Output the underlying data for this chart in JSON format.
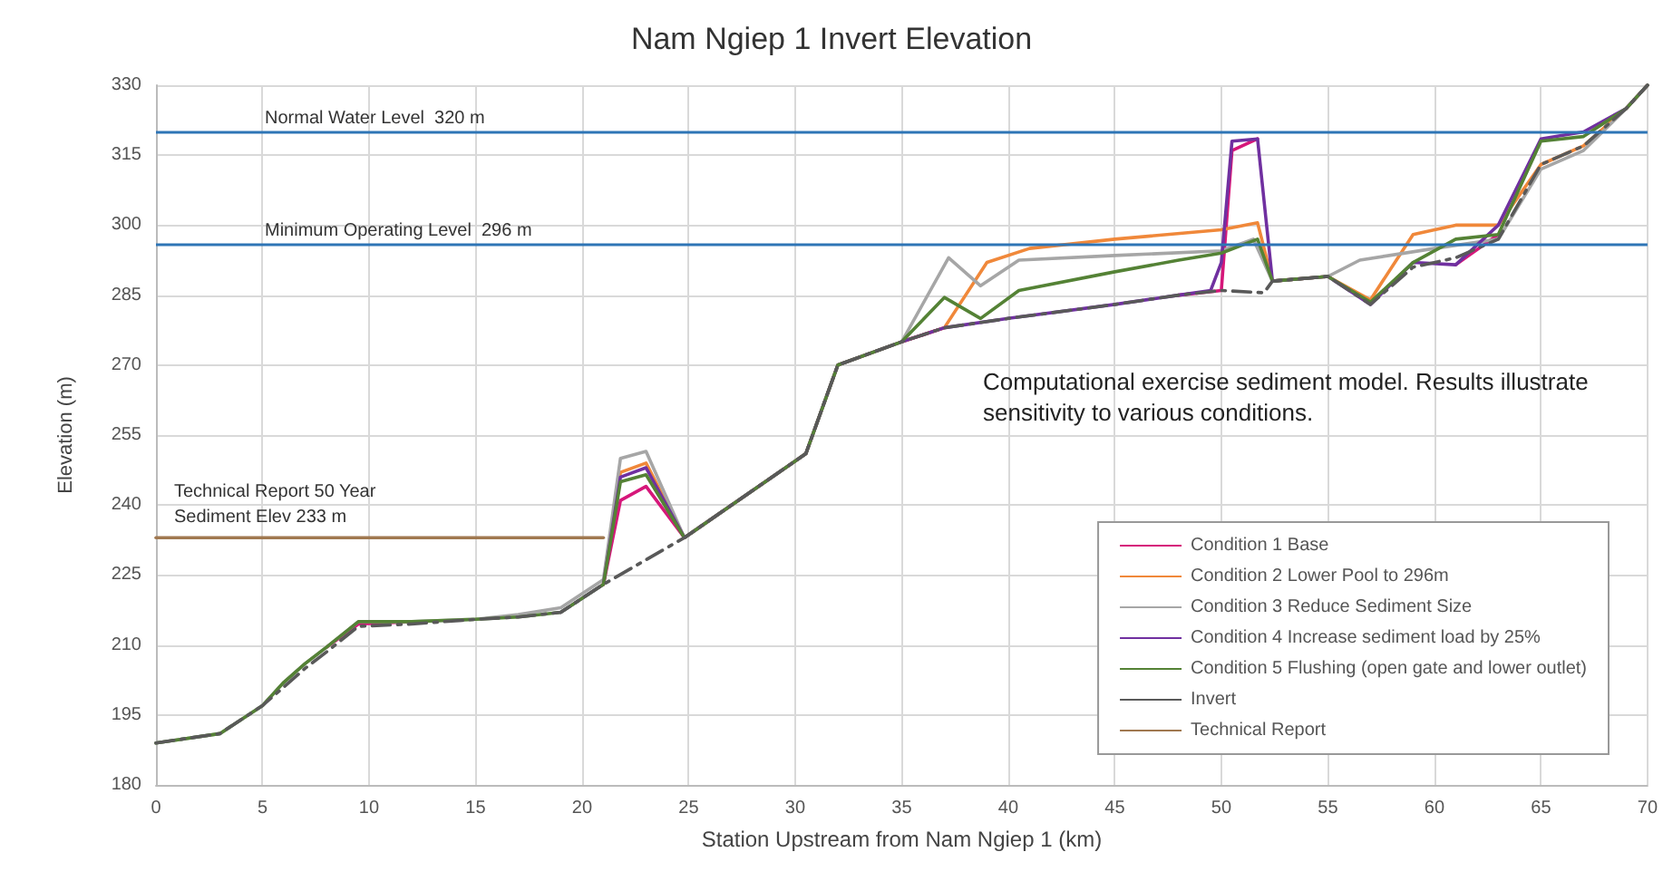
{
  "chart_data": {
    "type": "line",
    "title": "Nam Ngiep 1 Invert Elevation",
    "xlabel": "Station Upstream from Nam Ngiep 1 (km)",
    "ylabel": "Elevation (m)",
    "xlim": [
      0,
      70
    ],
    "xticks": [
      0,
      5,
      10,
      15,
      20,
      25,
      30,
      35,
      40,
      45,
      50,
      55,
      60,
      65,
      70
    ],
    "ylim": [
      180,
      330
    ],
    "yticks": [
      180,
      195,
      210,
      225,
      240,
      255,
      270,
      285,
      300,
      315,
      330
    ],
    "grid": true,
    "legend": "bottom right",
    "marker": "none",
    "series": [
      {
        "name": "Condition 1 Base",
        "color": "#d6177a",
        "x": [
          8,
          9.5,
          12,
          19,
          21,
          21.8,
          23,
          24.8,
          32,
          35,
          37,
          45,
          48,
          50,
          50.5,
          51.7,
          57,
          61,
          63
        ],
        "values": [
          209.5,
          214.5,
          215,
          null,
          223,
          241,
          244,
          233,
          null,
          275,
          278,
          null,
          285,
          286,
          316,
          318.5,
          null,
          291.5,
          298
        ]
      },
      {
        "name": "Condition 2 Lower Pool to 296m",
        "color": "#f0883a",
        "x": [
          21,
          21.8,
          23,
          24.8,
          30.5,
          32,
          35,
          37,
          39,
          41,
          45,
          50,
          51.7,
          52.4,
          55,
          57,
          59,
          61,
          63,
          65,
          67,
          69,
          70
        ],
        "values": [
          223,
          247,
          249,
          233,
          251,
          270,
          275,
          278,
          292,
          295,
          297,
          299,
          300.5,
          288,
          289,
          284,
          298,
          300,
          300,
          313,
          317,
          325,
          330
        ]
      },
      {
        "name": "Condition 3 Reduce Sediment Size",
        "color": "#a6a6a6",
        "x": [
          0,
          3,
          5,
          6,
          7,
          8,
          9.5,
          12,
          15,
          17,
          19,
          21,
          21.8,
          23,
          24.8,
          30.5,
          32,
          35,
          37.2,
          38.7,
          40.5,
          45,
          50,
          51.5,
          52.4,
          55,
          56.5,
          60,
          63,
          65,
          67,
          69,
          70
        ],
        "values": [
          189,
          191,
          197,
          202,
          206,
          209.5,
          215,
          215,
          215.5,
          216.5,
          218,
          224,
          250,
          251.5,
          233,
          251,
          270,
          275,
          293,
          287,
          292.5,
          293.5,
          294.5,
          297,
          288,
          289,
          292.5,
          295,
          297,
          312,
          316,
          325,
          330
        ]
      },
      {
        "name": "Condition 4 Increase sediment load by 25%",
        "color": "#7030a0",
        "x": [
          19,
          21,
          21.8,
          23,
          24.8,
          30.5,
          32,
          35,
          37,
          40,
          45,
          48,
          49.5,
          50,
          50.5,
          51.7,
          52.4,
          55,
          57,
          59,
          61,
          63,
          65,
          67,
          69,
          70
        ],
        "values": [
          217,
          223,
          246,
          248,
          233,
          251,
          270,
          275,
          278,
          280,
          283,
          285,
          286,
          292,
          318,
          318.5,
          288,
          289,
          283,
          292,
          291.5,
          300,
          318.5,
          320,
          325,
          330
        ]
      },
      {
        "name": "Condition 5 Flushing (open gate and lower outlet)",
        "color": "#548235",
        "x": [
          0,
          3,
          5,
          6,
          7,
          8,
          9.5,
          12,
          15,
          17,
          19,
          21,
          21.8,
          23,
          24.8,
          30.5,
          32,
          35,
          37,
          38.7,
          40.5,
          45,
          48,
          50,
          51.7,
          52.4,
          55,
          57,
          59,
          61,
          63,
          65,
          67,
          69,
          70
        ],
        "values": [
          189,
          191,
          197,
          202,
          206,
          209.5,
          215,
          215,
          215.5,
          216,
          217,
          223,
          245,
          246.5,
          233,
          251,
          270,
          275,
          284.5,
          280,
          286,
          290,
          292.5,
          294,
          297,
          288,
          289,
          283.5,
          292,
          297,
          298,
          318,
          319,
          325,
          330
        ]
      },
      {
        "name": "Invert",
        "color": "#595959",
        "line_style": "dashed",
        "x": [
          0,
          3,
          5,
          6,
          7,
          8,
          9.5,
          12,
          15,
          17,
          19,
          21,
          24.8,
          30.5,
          32,
          35,
          37,
          40,
          45,
          48,
          50,
          52,
          52.4,
          55,
          57,
          59,
          61,
          63,
          65,
          67,
          69,
          70
        ],
        "values": [
          189,
          191,
          197,
          201,
          205,
          208.5,
          214,
          214.5,
          215.5,
          216,
          217,
          223,
          233,
          251,
          270,
          275,
          278,
          280,
          283,
          285,
          286,
          285.5,
          288,
          289,
          283,
          291,
          293,
          297,
          313,
          317,
          325,
          330
        ]
      },
      {
        "name": "Technical Report",
        "color": "#a07850",
        "x": [
          0,
          21
        ],
        "values": [
          233,
          233
        ]
      }
    ],
    "ref_lines": [
      {
        "axis": "y",
        "value": 320,
        "label": "Normal Water Level  320 m",
        "color": "#2e75b6"
      },
      {
        "axis": "y",
        "value": 296,
        "label": "Minimum Operating Level  296 m",
        "color": "#2e75b6"
      }
    ],
    "annotations": [
      {
        "text": "Technical Report 50 Year Sediment Elev 233 m",
        "x": 0,
        "y": 233
      },
      "Computational exercise sediment model. Results illustrate sensitivity to various conditions."
    ]
  }
}
